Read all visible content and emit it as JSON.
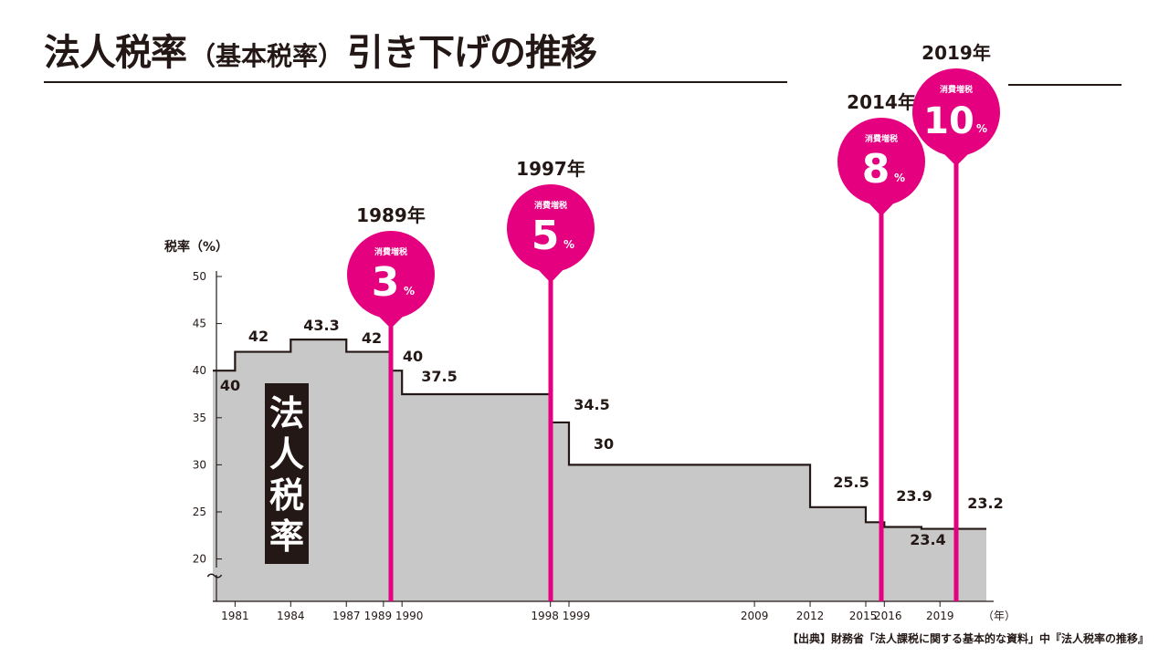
{
  "header": {
    "title_main": "法人税率",
    "title_paren": "（基本税率）",
    "title_rest": "引き下げの推移"
  },
  "source": "【出典】財務省「法人課税に関する基本的な資料」中『法人税率の推移』",
  "colors": {
    "fill": "#c8c8c9",
    "line": "#231815",
    "accent": "#e4007f"
  },
  "chart_data": {
    "type": "area",
    "subtype": "step",
    "ylabel": "税率（%）",
    "xlabel": "（年）",
    "xlim": [
      1979.8,
      2021.5
    ],
    "ylim": [
      15.5,
      50
    ],
    "axis_break": "〜",
    "yticks": [
      20,
      25,
      30,
      35,
      40,
      45,
      50
    ],
    "xtick_labels": [
      "1981",
      "1984",
      "1987",
      "1989",
      "1990",
      "1998",
      "1999",
      "2009",
      "2012",
      "2015",
      "2016",
      "2019"
    ],
    "series": [
      {
        "values": [
          {
            "x": 1979.8,
            "y": 40
          },
          {
            "x": 1981,
            "y": 42
          },
          {
            "x": 1984,
            "y": 43.3
          },
          {
            "x": 1987,
            "y": 42
          },
          {
            "x": 1989.4,
            "y": 40
          },
          {
            "x": 1990,
            "y": 37.5
          },
          {
            "x": 1998,
            "y": 34.5
          },
          {
            "x": 1999,
            "y": 30
          },
          {
            "x": 2012,
            "y": 25.5
          },
          {
            "x": 2015,
            "y": 23.9
          },
          {
            "x": 2016,
            "y": 23.4
          },
          {
            "x": 2018,
            "y": 23.2
          },
          {
            "x": 2021.5,
            "y": 23.2
          }
        ]
      }
    ],
    "data_labels": [
      "40",
      "42",
      "43.3",
      "42",
      "40",
      "37.5",
      "34.5",
      "30",
      "25.5",
      "23.9",
      "23.4",
      "23.2"
    ],
    "vertical_text": "法人税率",
    "annotations": [
      {
        "year_label": "1989年",
        "x": 1989.2,
        "caption": "消費増税",
        "value": "3",
        "unit": "%"
      },
      {
        "year_label": "1997年",
        "x": 1997.5,
        "caption": "消費増税",
        "value": "5",
        "unit": "%"
      },
      {
        "year_label": "2014年",
        "x": 2014.4,
        "caption": "消費増税",
        "value": "8",
        "unit": "%"
      },
      {
        "year_label": "2019年",
        "x": 2019.7,
        "caption": "消費増税",
        "value": "10",
        "unit": "%"
      }
    ]
  }
}
